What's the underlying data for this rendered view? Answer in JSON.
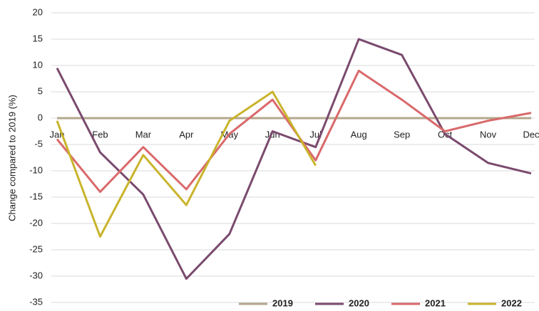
{
  "chart_data": {
    "type": "line",
    "y_label": "Change compared to 2019 (%)",
    "categories": [
      "Jan",
      "Feb",
      "Mar",
      "Apr",
      "May",
      "Jun",
      "Jul",
      "Aug",
      "Sep",
      "Oct",
      "Nov",
      "Dec"
    ],
    "series": [
      {
        "name": "2019",
        "color": "#b3a78c",
        "values": [
          0,
          0,
          0,
          0,
          0,
          0,
          0,
          0,
          0,
          0,
          0,
          0
        ]
      },
      {
        "name": "2020",
        "color": "#7a4a6e",
        "values": [
          9.5,
          -6.5,
          -14.5,
          -30.5,
          -22,
          -2.5,
          -5.5,
          15,
          12,
          -3,
          -8.5,
          -10.5
        ]
      },
      {
        "name": "2021",
        "color": "#d9696b",
        "values": [
          -4,
          -14,
          -5.5,
          -13.5,
          -3,
          3.5,
          -8,
          9,
          3.5,
          -2.5,
          -0.5,
          1
        ]
      },
      {
        "name": "2022",
        "color": "#c9b42c",
        "values": [
          -0.5,
          -22.5,
          -7,
          -16.5,
          -0.5,
          5,
          -9,
          null,
          null,
          null,
          null,
          null
        ]
      }
    ],
    "ylim": [
      -35,
      20
    ],
    "yticks": [
      -35,
      -30,
      -25,
      -20,
      -15,
      -10,
      -5,
      0,
      5,
      10,
      15,
      20
    ],
    "grid": true,
    "legend": "bottom-right"
  }
}
